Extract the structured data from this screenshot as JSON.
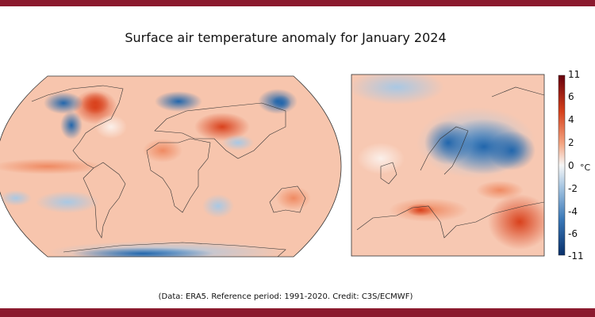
{
  "title": "Surface air temperature anomaly for January 2024",
  "caption": "(Data: ERA5. Reference period: 1991-2020. Credit: C3S/ECMWF)",
  "colorbar": {
    "unit": "°C",
    "ticks": [
      "11",
      "6",
      "4",
      "2",
      "0",
      "-2",
      "-4",
      "-6",
      "-11"
    ],
    "colors": {
      "max": "#67000d",
      "warm": "#e8501f",
      "neutral": "#f7f7f7",
      "cool": "#6a9fd0",
      "min": "#08306b"
    }
  },
  "maps": {
    "global": "global-robinson",
    "inset": "europe"
  },
  "colors": {
    "banner": "#8b1a2e",
    "base_warm": "#f7c2a8"
  }
}
